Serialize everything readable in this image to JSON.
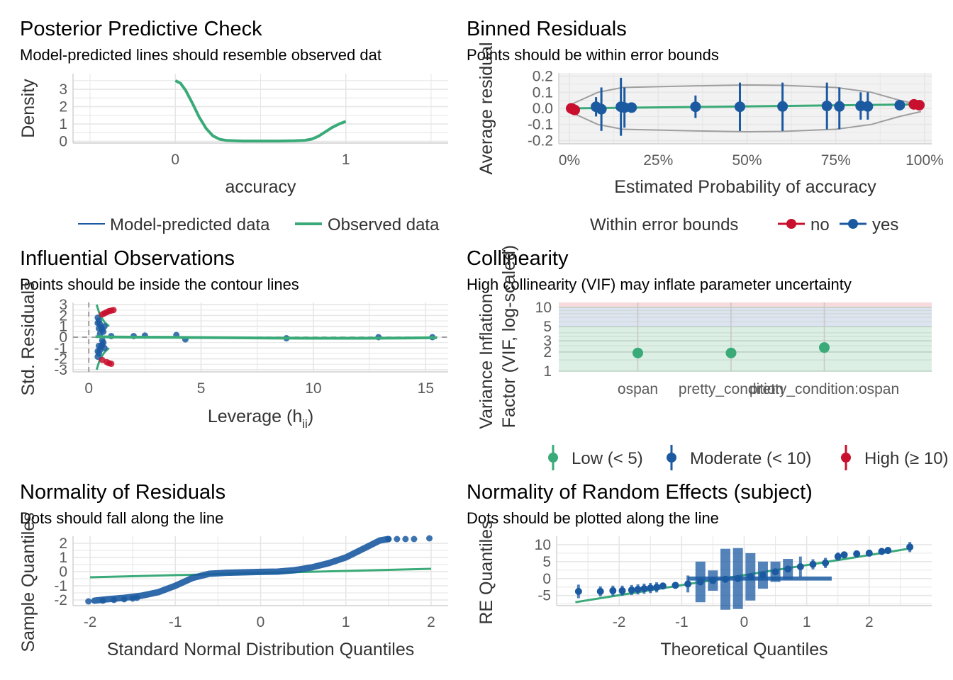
{
  "colors": {
    "green": "#3aaa78",
    "blue": "#1b5aa1",
    "red": "#c8102e",
    "grid": "#e6e6e6",
    "bounds": "#9e9e9e"
  },
  "chart_data": [
    {
      "id": "ppc",
      "type": "line",
      "title": "Posterior Predictive Check",
      "subtitle": "Model-predicted lines should resemble observed dat",
      "xlabel": "accuracy",
      "ylabel": "Density",
      "xlim": [
        -0.6,
        1.6
      ],
      "ylim": [
        -0.1,
        3.9
      ],
      "xticks": [
        {
          "v": 0,
          "label": "0"
        },
        {
          "v": 1,
          "label": "1"
        }
      ],
      "yticks": [
        {
          "v": 0,
          "label": "0"
        },
        {
          "v": 1,
          "label": "1"
        },
        {
          "v": 2,
          "label": "2"
        },
        {
          "v": 3,
          "label": "3"
        }
      ],
      "series": [
        {
          "name": "Observed data",
          "color": "#3aaa78",
          "x": [
            0,
            0.03,
            0.06,
            0.1,
            0.14,
            0.18,
            0.22,
            0.26,
            0.3,
            0.35,
            0.4,
            0.5,
            0.6,
            0.7,
            0.76,
            0.8,
            0.84,
            0.88,
            0.92,
            0.96,
            1.0
          ],
          "y": [
            3.5,
            3.35,
            2.95,
            2.2,
            1.4,
            0.75,
            0.32,
            0.12,
            0.05,
            0.03,
            0.02,
            0.02,
            0.02,
            0.03,
            0.06,
            0.13,
            0.3,
            0.55,
            0.8,
            1.0,
            1.15
          ]
        }
      ],
      "legend": [
        {
          "label": "Model-predicted data",
          "color": "#1b5aa1"
        },
        {
          "label": "Observed data",
          "color": "#3aaa78"
        }
      ]
    },
    {
      "id": "binned",
      "type": "scatter",
      "title": "Binned Residuals",
      "subtitle": "Points should be within error bounds",
      "xlabel": "Estimated Probability of accuracy",
      "ylabel": "Average residual",
      "xlim": [
        -0.03,
        1.02
      ],
      "ylim": [
        -0.22,
        0.22
      ],
      "xticks": [
        {
          "v": 0,
          "label": "0%"
        },
        {
          "v": 0.25,
          "label": "25%"
        },
        {
          "v": 0.5,
          "label": "50%"
        },
        {
          "v": 0.75,
          "label": "75%"
        },
        {
          "v": 1,
          "label": "100%"
        }
      ],
      "yticks": [
        {
          "v": -0.2,
          "label": "-0.2"
        },
        {
          "v": -0.1,
          "label": "-0.1"
        },
        {
          "v": 0,
          "label": "0.0"
        },
        {
          "v": 0.1,
          "label": "0.1"
        },
        {
          "v": 0.2,
          "label": "0.2"
        }
      ],
      "bounds": {
        "x": [
          0.0,
          0.08,
          0.15,
          0.35,
          0.5,
          0.6,
          0.75,
          0.85,
          0.93,
          0.99
        ],
        "upper": [
          0.02,
          0.1,
          0.13,
          0.14,
          0.145,
          0.143,
          0.13,
          0.1,
          0.05,
          0.02
        ],
        "lower": [
          -0.02,
          -0.1,
          -0.13,
          -0.14,
          -0.145,
          -0.143,
          -0.13,
          -0.1,
          -0.05,
          -0.02
        ]
      },
      "fit": {
        "x": [
          0,
          1
        ],
        "y": [
          0.0,
          0.025
        ]
      },
      "points": [
        {
          "x": 0.005,
          "y": 0.0,
          "lo": 0.0,
          "hi": 0.0,
          "in": false
        },
        {
          "x": 0.01,
          "y": -0.005,
          "lo": -0.005,
          "hi": -0.005,
          "in": false
        },
        {
          "x": 0.015,
          "y": -0.01,
          "lo": -0.01,
          "hi": -0.01,
          "in": false
        },
        {
          "x": 0.075,
          "y": 0.01,
          "lo": -0.05,
          "hi": 0.07,
          "in": true
        },
        {
          "x": 0.09,
          "y": -0.005,
          "lo": -0.14,
          "hi": 0.13,
          "in": true
        },
        {
          "x": 0.145,
          "y": 0.01,
          "lo": -0.17,
          "hi": 0.19,
          "in": true
        },
        {
          "x": 0.155,
          "y": 0.005,
          "lo": -0.12,
          "hi": 0.13,
          "in": true
        },
        {
          "x": 0.175,
          "y": 0.005,
          "lo": -0.005,
          "hi": 0.015,
          "in": true
        },
        {
          "x": 0.355,
          "y": 0.01,
          "lo": -0.06,
          "hi": 0.08,
          "in": true
        },
        {
          "x": 0.48,
          "y": 0.01,
          "lo": -0.14,
          "hi": 0.16,
          "in": true
        },
        {
          "x": 0.6,
          "y": 0.012,
          "lo": -0.14,
          "hi": 0.16,
          "in": true
        },
        {
          "x": 0.725,
          "y": 0.015,
          "lo": -0.13,
          "hi": 0.16,
          "in": true
        },
        {
          "x": 0.76,
          "y": 0.012,
          "lo": -0.13,
          "hi": 0.13,
          "in": true
        },
        {
          "x": 0.82,
          "y": 0.015,
          "lo": -0.07,
          "hi": 0.1,
          "in": true
        },
        {
          "x": 0.84,
          "y": 0.012,
          "lo": -0.07,
          "hi": 0.1,
          "in": true
        },
        {
          "x": 0.93,
          "y": 0.02,
          "lo": -0.01,
          "hi": 0.05,
          "in": true
        },
        {
          "x": 0.97,
          "y": 0.025,
          "lo": 0.025,
          "hi": 0.025,
          "in": false
        },
        {
          "x": 0.985,
          "y": 0.02,
          "lo": 0.02,
          "hi": 0.02,
          "in": false
        }
      ],
      "legend_title": "Within error bounds",
      "legend": [
        {
          "label": "no",
          "color": "#c8102e"
        },
        {
          "label": "yes",
          "color": "#1b5aa1"
        }
      ]
    },
    {
      "id": "influence",
      "type": "scatter",
      "title": "Influential Observations",
      "subtitle": "Points should be inside the contour lines",
      "xlabel": "Leverage (h",
      "xlabel_sub": "ii",
      "xlabel_end": ")",
      "ylabel": "Std. Residuals",
      "xlim": [
        -0.7,
        16.0
      ],
      "ylim": [
        -3.2,
        3.2
      ],
      "xticks": [
        {
          "v": 0,
          "label": "0"
        },
        {
          "v": 5,
          "label": "5"
        },
        {
          "v": 10,
          "label": "10"
        },
        {
          "v": 15,
          "label": "15"
        }
      ],
      "yticks": [
        {
          "v": -3,
          "label": "-3"
        },
        {
          "v": -2,
          "label": "-2"
        },
        {
          "v": -1,
          "label": "-1"
        },
        {
          "v": 0,
          "label": "0"
        },
        {
          "v": 1,
          "label": "1"
        },
        {
          "v": 2,
          "label": "2"
        },
        {
          "v": 3,
          "label": "3"
        }
      ],
      "fit": {
        "x": [
          0.3,
          1,
          2,
          4,
          6,
          8,
          10,
          12,
          14,
          15.5
        ],
        "y": [
          0.05,
          0.02,
          0.0,
          -0.02,
          -0.05,
          -0.08,
          -0.1,
          -0.1,
          -0.08,
          -0.05
        ]
      },
      "contour_upper": {
        "x": [
          0.35,
          0.5,
          0.7,
          0.9
        ],
        "y": [
          3.0,
          2.0,
          1.4,
          1.0
        ]
      },
      "contour_lower": {
        "x": [
          0.35,
          0.5,
          0.7,
          0.9
        ],
        "y": [
          -3.0,
          -2.0,
          -1.4,
          -1.0
        ]
      },
      "points_blue": [
        [
          0.4,
          1.8
        ],
        [
          0.45,
          1.5
        ],
        [
          0.5,
          1.2
        ],
        [
          0.55,
          0.9
        ],
        [
          0.6,
          0.7
        ],
        [
          0.65,
          0.5
        ],
        [
          0.7,
          1.0
        ],
        [
          0.4,
          1.3
        ],
        [
          0.45,
          0.8
        ],
        [
          0.4,
          -1.8
        ],
        [
          0.45,
          -1.5
        ],
        [
          0.5,
          -1.2
        ],
        [
          0.55,
          -0.9
        ],
        [
          0.6,
          -0.7
        ],
        [
          0.65,
          -0.5
        ],
        [
          0.7,
          -1.0
        ],
        [
          0.4,
          -1.3
        ],
        [
          0.45,
          -0.8
        ],
        [
          0.5,
          0.3
        ],
        [
          0.6,
          -0.3
        ],
        [
          1.0,
          0.1
        ],
        [
          2.0,
          0.1
        ],
        [
          2.5,
          0.15
        ],
        [
          3.9,
          0.2
        ],
        [
          4.3,
          -0.2
        ],
        [
          8.8,
          -0.1
        ],
        [
          12.9,
          0.0
        ],
        [
          15.3,
          0.0
        ]
      ],
      "points_red": [
        [
          0.6,
          2.1
        ],
        [
          0.8,
          2.3
        ],
        [
          0.9,
          2.4
        ],
        [
          1.0,
          2.45
        ],
        [
          1.1,
          2.5
        ],
        [
          0.7,
          2.2
        ],
        [
          0.6,
          -2.1
        ],
        [
          0.8,
          -2.3
        ],
        [
          0.9,
          -2.4
        ],
        [
          1.0,
          -2.45
        ]
      ]
    },
    {
      "id": "collinearity",
      "type": "scatter",
      "title": "Collinearity",
      "subtitle": "High collinearity (VIF) may inflate parameter uncertainty",
      "xlabel": "",
      "ylabel": "Variance Inflation",
      "ylabel2": "Factor (VIF, log-scaled)",
      "ylog": true,
      "ylim": [
        1,
        12
      ],
      "yticks": [
        {
          "v": 1,
          "label": "1"
        },
        {
          "v": 2,
          "label": "2"
        },
        {
          "v": 3,
          "label": "3"
        },
        {
          "v": 5,
          "label": "5"
        },
        {
          "v": 10,
          "label": "10"
        }
      ],
      "categories": [
        "ospan",
        "pretty_condition",
        "pretty_condition:ospan"
      ],
      "values": [
        1.93,
        1.93,
        2.35
      ],
      "legend": [
        {
          "label": "Low (< 5)",
          "color": "#3aaa78"
        },
        {
          "label": "Moderate (< 10)",
          "color": "#1b5aa1"
        },
        {
          "label": "High (≥ 10)",
          "color": "#c8102e"
        }
      ]
    },
    {
      "id": "qq-resid",
      "type": "scatter",
      "title": "Normality of Residuals",
      "subtitle": "Dots should fall along the line",
      "xlabel": "Standard Normal Distribution Quantiles",
      "ylabel": "Sample Quantiles",
      "xlim": [
        -2.2,
        2.2
      ],
      "ylim": [
        -2.4,
        2.5
      ],
      "xticks": [
        {
          "v": -2,
          "label": "-2"
        },
        {
          "v": -1,
          "label": "-1"
        },
        {
          "v": 0,
          "label": "0"
        },
        {
          "v": 1,
          "label": "1"
        },
        {
          "v": 2,
          "label": "2"
        }
      ],
      "yticks": [
        {
          "v": -2,
          "label": "-2"
        },
        {
          "v": -1,
          "label": "-1"
        },
        {
          "v": 0,
          "label": "0"
        },
        {
          "v": 1,
          "label": "1"
        },
        {
          "v": 2,
          "label": "2"
        }
      ],
      "fit": {
        "x": [
          -2,
          2
        ],
        "y": [
          -0.4,
          0.2
        ]
      },
      "curve": {
        "x": [
          -1.95,
          -1.8,
          -1.6,
          -1.4,
          -1.2,
          -1.0,
          -0.8,
          -0.6,
          -0.4,
          -0.2,
          0.0,
          0.2,
          0.4,
          0.6,
          0.8,
          1.0,
          1.2,
          1.4,
          1.5
        ],
        "y": [
          -2.05,
          -1.95,
          -1.85,
          -1.7,
          -1.45,
          -1.0,
          -0.45,
          -0.15,
          -0.08,
          -0.05,
          -0.02,
          0.0,
          0.1,
          0.3,
          0.6,
          1.0,
          1.6,
          2.2,
          2.3
        ]
      },
      "points": [
        [
          -2.02,
          -2.1
        ],
        [
          -1.85,
          -2.05
        ],
        [
          -1.72,
          -2.0
        ],
        [
          -1.6,
          -1.95
        ],
        [
          -1.5,
          -1.9
        ],
        [
          -1.45,
          -1.85
        ],
        [
          1.5,
          2.3
        ],
        [
          1.6,
          2.3
        ],
        [
          1.7,
          2.3
        ],
        [
          1.8,
          2.3
        ],
        [
          1.98,
          2.35
        ]
      ]
    },
    {
      "id": "qq-re",
      "type": "scatter",
      "title": "Normality of Random Effects (subject)",
      "subtitle": "Dots should be plotted along the line",
      "xlabel": "Theoretical Quantiles",
      "ylabel": "RE Quantiles",
      "xlim": [
        -3.0,
        3.0
      ],
      "ylim": [
        -8.0,
        12.5
      ],
      "xticks": [
        {
          "v": -2,
          "label": "-2"
        },
        {
          "v": -1,
          "label": "-1"
        },
        {
          "v": 0,
          "label": "0"
        },
        {
          "v": 1,
          "label": "1"
        },
        {
          "v": 2,
          "label": "2"
        }
      ],
      "yticks": [
        {
          "v": -5,
          "label": "-5"
        },
        {
          "v": 0,
          "label": "0"
        },
        {
          "v": 5,
          "label": "5"
        },
        {
          "v": 10,
          "label": "10"
        }
      ],
      "fit": {
        "x": [
          -2.7,
          2.7
        ],
        "y": [
          -7.0,
          9.0
        ]
      },
      "points": [
        {
          "x": -2.65,
          "y": -3.8,
          "e": 2.0
        },
        {
          "x": -2.3,
          "y": -3.8,
          "e": 1.5
        },
        {
          "x": -2.1,
          "y": -3.6,
          "e": 1.5
        },
        {
          "x": -1.95,
          "y": -3.6,
          "e": 1.5
        },
        {
          "x": -1.8,
          "y": -3.4,
          "e": 1.5
        },
        {
          "x": -1.7,
          "y": -3.2,
          "e": 1.5
        },
        {
          "x": -1.6,
          "y": -3.0,
          "e": 1.5
        },
        {
          "x": -1.5,
          "y": -2.8,
          "e": 1.5
        },
        {
          "x": -1.4,
          "y": -2.6,
          "e": 1.5
        },
        {
          "x": -1.3,
          "y": -2.2,
          "e": 1.0
        },
        {
          "x": -1.1,
          "y": -2.0,
          "e": 1.0
        },
        {
          "x": -0.9,
          "y": -1.6,
          "e": 2.5
        },
        {
          "x": -0.7,
          "y": -1.0,
          "e": 6.0
        },
        {
          "x": -0.5,
          "y": -0.6,
          "e": 3.0
        },
        {
          "x": -0.3,
          "y": -0.2,
          "e": 9.0
        },
        {
          "x": -0.1,
          "y": 0.0,
          "e": 9.0
        },
        {
          "x": 0.1,
          "y": 0.5,
          "e": 7.0
        },
        {
          "x": 0.3,
          "y": 1.0,
          "e": 4.0
        },
        {
          "x": 0.5,
          "y": 2.0,
          "e": 3.0
        },
        {
          "x": 0.7,
          "y": 2.8,
          "e": 3.0
        },
        {
          "x": 0.9,
          "y": 3.5,
          "e": 3.0
        },
        {
          "x": 1.1,
          "y": 4.2,
          "e": 1.5
        },
        {
          "x": 1.3,
          "y": 4.6,
          "e": 1.5
        },
        {
          "x": 1.5,
          "y": 6.5,
          "e": 1.2
        },
        {
          "x": 1.6,
          "y": 7.0,
          "e": 1.0
        },
        {
          "x": 1.8,
          "y": 7.3,
          "e": 1.0
        },
        {
          "x": 2.0,
          "y": 7.5,
          "e": 1.0
        },
        {
          "x": 2.2,
          "y": 8.0,
          "e": 1.0
        },
        {
          "x": 2.3,
          "y": 8.3,
          "e": 1.0
        },
        {
          "x": 2.65,
          "y": 9.3,
          "e": 1.5
        }
      ]
    }
  ]
}
